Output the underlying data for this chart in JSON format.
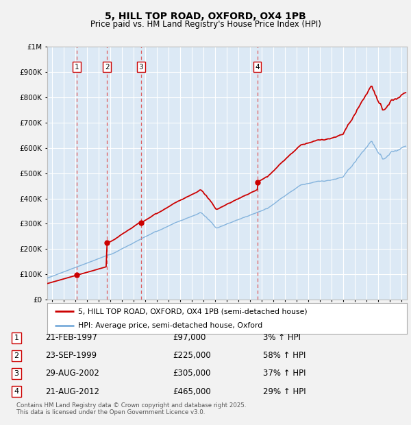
{
  "title": "5, HILL TOP ROAD, OXFORD, OX4 1PB",
  "subtitle": "Price paid vs. HM Land Registry's House Price Index (HPI)",
  "legend_line1": "5, HILL TOP ROAD, OXFORD, OX4 1PB (semi-detached house)",
  "legend_line2": "HPI: Average price, semi-detached house, Oxford",
  "footer1": "Contains HM Land Registry data © Crown copyright and database right 2025.",
  "footer2": "This data is licensed under the Open Government Licence v3.0.",
  "sales": [
    {
      "num": 1,
      "date": "21-FEB-1997",
      "price": 97000,
      "pct": "3%",
      "year": 1997.12
    },
    {
      "num": 2,
      "date": "23-SEP-1999",
      "price": 225000,
      "pct": "58%",
      "year": 1999.73
    },
    {
      "num": 3,
      "date": "29-AUG-2002",
      "price": 305000,
      "pct": "37%",
      "year": 2002.66
    },
    {
      "num": 4,
      "date": "21-AUG-2012",
      "price": 465000,
      "pct": "29%",
      "year": 2012.64
    }
  ],
  "ylim": [
    0,
    1000000
  ],
  "xlim": [
    1994.6,
    2025.5
  ],
  "bg_color": "#dce9f5",
  "grid_color": "#ffffff",
  "red_color": "#cc0000",
  "blue_color": "#7aadda",
  "dashed_color": "#dd4444",
  "fig_bg": "#f0f0f0"
}
